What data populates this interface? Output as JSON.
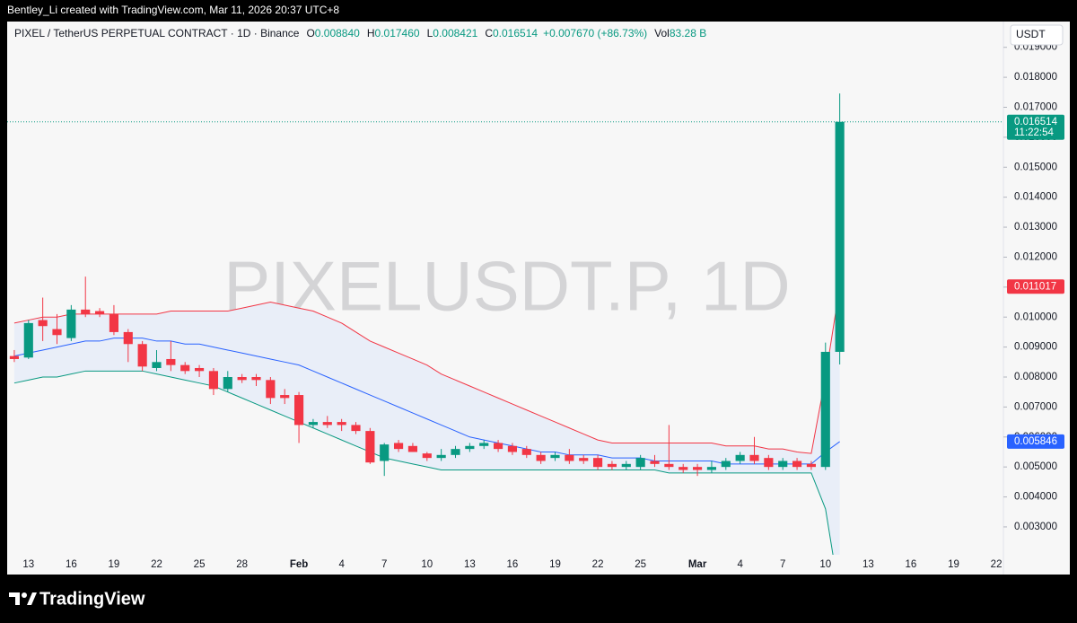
{
  "header": "Bentley_Li created with TradingView.com, Mar 11, 2026 20:37 UTC+8",
  "footer_logo": "TradingView",
  "chart_data": {
    "type": "candlestick",
    "symbol": "PIXEL / TetherUS PERPETUAL CONTRACT · 1D · Binance",
    "watermark": "PIXELUSDT.P, 1D",
    "currency": "USDT",
    "ohlc_legend": [
      {
        "label": "O",
        "value": "0.008840"
      },
      {
        "label": "H",
        "value": "0.017460"
      },
      {
        "label": "L",
        "value": "0.008421"
      },
      {
        "label": "C",
        "value": "0.016514"
      }
    ],
    "change": "+0.007670 (+86.73%)",
    "volume": {
      "label": "Vol",
      "value": "83.28 B"
    },
    "categories": [
      null,
      "13",
      null,
      null,
      "16",
      null,
      null,
      "19",
      null,
      null,
      "22",
      null,
      null,
      "25",
      null,
      null,
      "28",
      null,
      null,
      null,
      "Feb",
      null,
      null,
      "4",
      null,
      null,
      "7",
      null,
      null,
      "10",
      null,
      null,
      "13",
      null,
      null,
      "16",
      null,
      null,
      "19",
      null,
      null,
      "22",
      null,
      null,
      "25",
      null,
      null,
      null,
      "Mar",
      null,
      null,
      "4",
      null,
      null,
      "7",
      null,
      null,
      "10",
      null,
      null,
      "13",
      null,
      null,
      "16",
      null,
      null,
      "19",
      null,
      null,
      "22"
    ],
    "open": [
      0.0087,
      0.00865,
      0.0099,
      0.0096,
      0.0093,
      0.01025,
      0.0102,
      0.0101,
      0.0095,
      0.0091,
      0.0083,
      0.0086,
      0.0084,
      0.0083,
      0.0082,
      0.0076,
      0.008,
      0.008,
      0.0079,
      0.0074,
      0.0074,
      0.0064,
      0.0065,
      0.0065,
      0.0064,
      0.0062,
      0.0052,
      0.0058,
      0.0057,
      0.00545,
      0.0053,
      0.0054,
      0.0056,
      0.0057,
      0.0058,
      0.0057,
      0.0056,
      0.0054,
      0.0053,
      0.0054,
      0.0053,
      0.0053,
      0.0051,
      0.005,
      0.005,
      0.0052,
      0.0051,
      0.005,
      0.005,
      0.0049,
      0.005,
      0.0052,
      0.0054,
      0.0053,
      0.005,
      0.0052,
      0.0051,
      0.005,
      0.00884,
      null,
      null,
      null,
      null,
      null,
      null,
      null,
      null,
      null,
      null,
      null
    ],
    "high": [
      0.0089,
      0.0099,
      0.01065,
      0.0101,
      0.0104,
      0.01135,
      0.0103,
      0.0104,
      0.0096,
      0.0092,
      0.0089,
      0.0092,
      0.0085,
      0.0084,
      0.0083,
      0.0082,
      0.0081,
      0.0081,
      0.008,
      0.0076,
      0.0075,
      0.0066,
      0.0067,
      0.0066,
      0.0065,
      0.0063,
      0.0058,
      0.0059,
      0.0058,
      0.0055,
      0.0056,
      0.0057,
      0.0058,
      0.0059,
      0.0059,
      0.0058,
      0.0057,
      0.0055,
      0.0055,
      0.0056,
      0.0054,
      0.0054,
      0.0052,
      0.0052,
      0.0054,
      0.0054,
      0.0064,
      0.0051,
      0.0051,
      0.0052,
      0.0053,
      0.0055,
      0.006,
      0.0054,
      0.0053,
      0.0053,
      0.0052,
      0.00915,
      0.01746,
      null,
      null,
      null,
      null,
      null,
      null,
      null,
      null,
      null,
      null,
      null
    ],
    "low": [
      0.0085,
      0.0086,
      0.0092,
      0.0091,
      0.0092,
      0.01,
      0.01,
      0.0094,
      0.0085,
      0.0082,
      0.0082,
      0.0082,
      0.0081,
      0.008,
      0.0074,
      0.0075,
      0.0078,
      0.0077,
      0.0071,
      0.0071,
      0.0058,
      0.0063,
      0.0063,
      0.0062,
      0.0061,
      0.0051,
      0.0047,
      0.0055,
      0.0055,
      0.0052,
      0.0052,
      0.0053,
      0.0055,
      0.0056,
      0.0055,
      0.0054,
      0.0053,
      0.0051,
      0.0052,
      0.0051,
      0.0051,
      0.0049,
      0.0049,
      0.0049,
      0.0049,
      0.005,
      0.0049,
      0.0048,
      0.0047,
      0.0048,
      0.0049,
      0.0051,
      0.0051,
      0.0049,
      0.0049,
      0.0049,
      0.0049,
      0.0049,
      0.008421,
      null,
      null,
      null,
      null,
      null,
      null,
      null,
      null,
      null,
      null,
      null
    ],
    "close": [
      0.0086,
      0.0098,
      0.0097,
      0.0094,
      0.01025,
      0.0101,
      0.0101,
      0.0095,
      0.0091,
      0.00835,
      0.0085,
      0.0084,
      0.0082,
      0.0082,
      0.0076,
      0.008,
      0.0079,
      0.0079,
      0.0073,
      0.0073,
      0.0064,
      0.0065,
      0.0064,
      0.0064,
      0.0062,
      0.00515,
      0.00575,
      0.0056,
      0.0055,
      0.0053,
      0.0054,
      0.0056,
      0.0057,
      0.0058,
      0.0056,
      0.0055,
      0.0054,
      0.0052,
      0.0054,
      0.0052,
      0.0052,
      0.005,
      0.005,
      0.0051,
      0.0053,
      0.0051,
      0.005,
      0.0049,
      0.0049,
      0.005,
      0.0052,
      0.0054,
      0.0052,
      0.005,
      0.0052,
      0.005,
      0.005,
      0.00884,
      0.016514,
      null,
      null,
      null,
      null,
      null,
      null,
      null,
      null,
      null,
      null,
      null
    ],
    "up_color": "#089981",
    "down_color": "#f23645",
    "bands": {
      "fill": "#e9eef8",
      "upper": {
        "color": "#f23645",
        "values": [
          0.0098,
          0.0099,
          0.01,
          0.01,
          0.0101,
          0.0101,
          0.0101,
          0.0101,
          0.0101,
          0.0101,
          0.0101,
          0.0102,
          0.0102,
          0.0102,
          0.0102,
          0.0102,
          0.0103,
          0.0104,
          0.0105,
          0.0104,
          0.0103,
          0.0102,
          0.01,
          0.0098,
          0.0095,
          0.0092,
          0.009,
          0.0088,
          0.0086,
          0.0084,
          0.0081,
          0.0079,
          0.0077,
          0.0075,
          0.0073,
          0.0071,
          0.0069,
          0.0067,
          0.0065,
          0.0063,
          0.0061,
          0.0059,
          0.0058,
          0.0058,
          0.0058,
          0.0058,
          0.0058,
          0.0058,
          0.0058,
          0.0058,
          0.0057,
          0.0057,
          0.0057,
          0.0056,
          0.0056,
          0.0055,
          0.00545,
          0.008,
          0.011017,
          null,
          null,
          null,
          null,
          null,
          null,
          null,
          null,
          null,
          null,
          null
        ]
      },
      "basis": {
        "color": "#2962ff",
        "values": [
          0.0087,
          0.0088,
          0.0089,
          0.009,
          0.0091,
          0.0092,
          0.0092,
          0.0093,
          0.0093,
          0.0093,
          0.0092,
          0.0092,
          0.0091,
          0.0091,
          0.009,
          0.0089,
          0.0088,
          0.0087,
          0.0086,
          0.0085,
          0.0084,
          0.0082,
          0.008,
          0.0078,
          0.0076,
          0.0074,
          0.0072,
          0.007,
          0.0068,
          0.0066,
          0.0064,
          0.0062,
          0.006,
          0.0059,
          0.0058,
          0.0057,
          0.0056,
          0.0055,
          0.0055,
          0.0054,
          0.0054,
          0.0054,
          0.0053,
          0.0053,
          0.0053,
          0.0052,
          0.0052,
          0.0052,
          0.0052,
          0.0052,
          0.0051,
          0.0051,
          0.0051,
          0.0051,
          0.0051,
          0.0051,
          0.0051,
          0.0055,
          0.005846,
          null,
          null,
          null,
          null,
          null,
          null,
          null,
          null,
          null,
          null,
          null
        ]
      },
      "lower": {
        "color": "#089981",
        "values": [
          0.0078,
          0.0079,
          0.008,
          0.008,
          0.0081,
          0.0082,
          0.0082,
          0.0082,
          0.0082,
          0.0082,
          0.0081,
          0.008,
          0.0079,
          0.0078,
          0.0077,
          0.0075,
          0.0073,
          0.0071,
          0.0069,
          0.0067,
          0.0065,
          0.0063,
          0.0061,
          0.0059,
          0.0057,
          0.0055,
          0.0053,
          0.0052,
          0.0051,
          0.005,
          0.0049,
          0.0049,
          0.0049,
          0.0049,
          0.0049,
          0.0049,
          0.0049,
          0.0049,
          0.0049,
          0.0049,
          0.0049,
          0.0049,
          0.0049,
          0.0049,
          0.0049,
          0.0049,
          0.0048,
          0.0048,
          0.0048,
          0.0048,
          0.0048,
          0.0048,
          0.0048,
          0.0048,
          0.0048,
          0.0048,
          0.0048,
          0.0036,
          0.000675,
          null,
          null,
          null,
          null,
          null,
          null,
          null,
          null,
          null,
          null,
          null
        ]
      }
    },
    "ylim": [
      0.00207,
      0.01986
    ],
    "yticks": [
      {
        "value": 0.003,
        "label": "0.003000"
      },
      {
        "value": 0.004,
        "label": "0.004000"
      },
      {
        "value": 0.005,
        "label": "0.005000"
      },
      {
        "value": 0.006,
        "label": "0.006000"
      },
      {
        "value": 0.007,
        "label": "0.007000"
      },
      {
        "value": 0.008,
        "label": "0.008000"
      },
      {
        "value": 0.009,
        "label": "0.009000"
      },
      {
        "value": 0.01,
        "label": "0.010000"
      },
      {
        "value": 0.011,
        "label": "0.011000"
      },
      {
        "value": 0.012,
        "label": "0.012000"
      },
      {
        "value": 0.013,
        "label": "0.013000"
      },
      {
        "value": 0.014,
        "label": "0.014000"
      },
      {
        "value": 0.015,
        "label": "0.015000"
      },
      {
        "value": 0.016,
        "label": "0.016000"
      },
      {
        "value": 0.017,
        "label": "0.017000"
      },
      {
        "value": 0.018,
        "label": "0.018000"
      },
      {
        "value": 0.019,
        "label": "0.019000"
      }
    ],
    "price_labels": [
      {
        "value": 0.011017,
        "label": "0.011017",
        "color": "#f23645"
      },
      {
        "value": 0.005846,
        "label": "0.005846",
        "color": "#2962ff"
      },
      {
        "value": 0.016514,
        "label": "0.016514",
        "color": "#089981",
        "countdown": "11:22:54"
      }
    ]
  }
}
